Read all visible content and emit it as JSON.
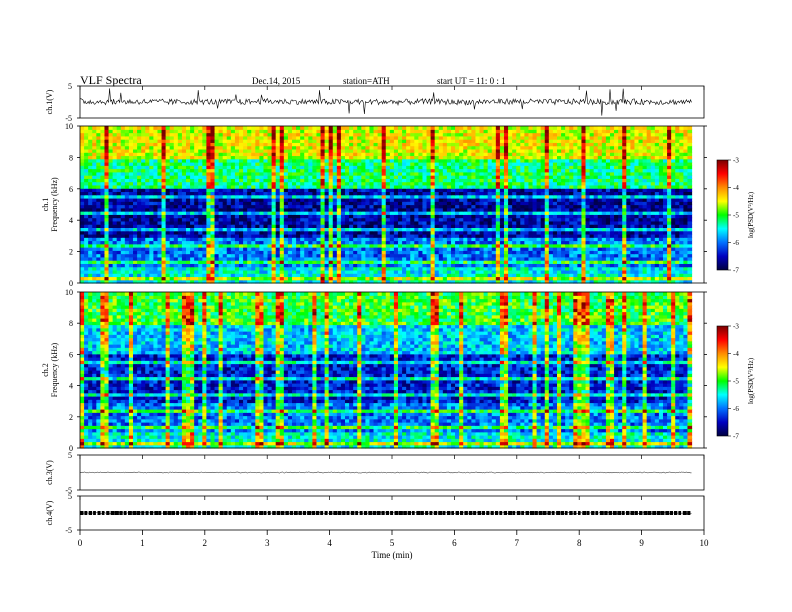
{
  "header": {
    "title": "VLF Spectra",
    "date": "Dec.14, 2015",
    "station": "station=ATH",
    "start": "start  UT =   11: 0  : 1"
  },
  "colorbar": {
    "label": "log(PSD(V²/Hz)",
    "ticks": [
      "-3",
      "-4",
      "-5",
      "-6",
      "-7"
    ],
    "colors": [
      "#7a0000",
      "#ff0000",
      "#ff8c00",
      "#ffff00",
      "#00ff00",
      "#00ffff",
      "#0070ff",
      "#0000c0",
      "#000040"
    ]
  },
  "chart_data": [
    {
      "type": "line",
      "name": "ch1 waveform",
      "ylabel": "ch.1(V)",
      "ylim": [
        -5,
        5
      ],
      "yticks": [
        "5",
        "-5"
      ],
      "x": [
        0,
        0.5,
        1,
        1.5,
        2,
        2.5,
        3,
        3.5,
        4,
        4.5,
        5,
        5.5,
        6,
        6.5,
        7,
        7.5,
        8,
        8.5,
        9,
        9.5,
        9.8
      ],
      "values": [
        0.2,
        0.0,
        0.1,
        0.0,
        0.1,
        0.0,
        0.2,
        0.1,
        0.0,
        0.1,
        0.0,
        0.1,
        0.0,
        0.1,
        0.2,
        0.0,
        0.1,
        0.0,
        0.1,
        0.0,
        0.1
      ],
      "color": "#000000"
    },
    {
      "type": "heatmap",
      "name": "ch1 spectrogram",
      "ylabel": "ch.1\nFrequency (kHz)",
      "yticks": [
        "0",
        "2",
        "4",
        "6",
        "8",
        "10"
      ],
      "ylim": [
        0,
        10
      ],
      "xlim": [
        0,
        10
      ],
      "colorbar_range": [
        -7,
        -3
      ],
      "note_levels_by_band": [
        {
          "band_khz": [
            8,
            10
          ],
          "logpsd": -4.5
        },
        {
          "band_khz": [
            6,
            8
          ],
          "logpsd": -5.2
        },
        {
          "band_khz": [
            3,
            6
          ],
          "logpsd": -6.6
        },
        {
          "band_khz": [
            1,
            3
          ],
          "logpsd": -6.0
        },
        {
          "band_khz": [
            0,
            1
          ],
          "logpsd": -5.5
        }
      ]
    },
    {
      "type": "heatmap",
      "name": "ch2 spectrogram",
      "ylabel": "ch.2\nFrequency (kHz)",
      "yticks": [
        "0",
        "2",
        "4",
        "6",
        "8",
        "10"
      ],
      "ylim": [
        0,
        10
      ],
      "xlim": [
        0,
        10
      ],
      "colorbar_range": [
        -7,
        -3
      ],
      "note_levels_by_band": [
        {
          "band_khz": [
            8,
            10
          ],
          "logpsd": -5.0
        },
        {
          "band_khz": [
            6,
            8
          ],
          "logpsd": -5.7
        },
        {
          "band_khz": [
            3,
            6
          ],
          "logpsd": -6.4
        },
        {
          "band_khz": [
            1,
            3
          ],
          "logpsd": -6.0
        },
        {
          "band_khz": [
            0,
            1
          ],
          "logpsd": -5.5
        }
      ]
    },
    {
      "type": "line",
      "name": "ch3 waveform",
      "ylabel": "ch.3(V)",
      "ylim": [
        -5,
        5
      ],
      "yticks": [
        "5",
        "-5"
      ],
      "x": [
        0,
        9.8
      ],
      "values": [
        0,
        0
      ],
      "color": "#000000"
    },
    {
      "type": "line",
      "name": "ch4 waveform",
      "ylabel": "ch.4(V)",
      "ylim": [
        -5,
        5
      ],
      "yticks": [
        "5",
        "-5"
      ],
      "x": [
        0,
        9.8
      ],
      "values": [
        0,
        0
      ],
      "color": "#000000"
    }
  ],
  "xaxis": {
    "label": "Time  (min)",
    "ticks": [
      "0",
      "1",
      "2",
      "3",
      "4",
      "5",
      "6",
      "7",
      "8",
      "9",
      "10"
    ],
    "xlim": [
      0,
      10
    ]
  }
}
